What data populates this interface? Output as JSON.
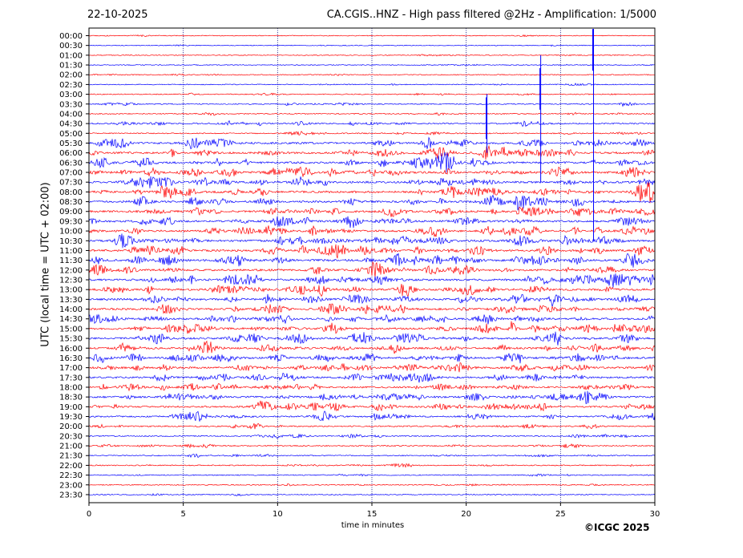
{
  "header": {
    "date": "22-10-2025",
    "title": "CA.CGIS..HNZ - High pass filtered @2Hz - Amplification: 1/5000"
  },
  "footer": {
    "copyright": "©ICGC 2025"
  },
  "colors": {
    "trace_a": "#ff0000",
    "trace_b": "#0000ff",
    "axis": "#000000",
    "grid": "#000080"
  },
  "chart_data": {
    "type": "line",
    "chart_kind": "helicorder seismogram",
    "xlabel": "time in minutes",
    "ylabel": "UTC (local time = UTC + 02:00)",
    "xlim": [
      0,
      30
    ],
    "x_ticks": [
      0,
      5,
      10,
      15,
      20,
      25,
      30
    ],
    "vertical_grid": [
      5,
      10,
      15,
      20,
      25
    ],
    "row_labels": [
      "00:00",
      "00:30",
      "01:00",
      "01:30",
      "02:00",
      "02:30",
      "03:00",
      "03:30",
      "04:00",
      "04:30",
      "05:00",
      "05:30",
      "06:00",
      "06:30",
      "07:00",
      "07:30",
      "08:00",
      "08:30",
      "09:00",
      "09:30",
      "10:00",
      "10:30",
      "11:00",
      "11:30",
      "12:00",
      "12:30",
      "13:00",
      "13:30",
      "14:00",
      "14:30",
      "15:00",
      "15:30",
      "16:00",
      "16:30",
      "17:00",
      "17:30",
      "18:00",
      "18:30",
      "19:00",
      "19:30",
      "20:00",
      "20:30",
      "21:00",
      "21:30",
      "22:00",
      "22:30",
      "23:00",
      "23:30"
    ],
    "row_activity": [
      0.15,
      0.12,
      0.18,
      0.15,
      0.2,
      0.2,
      0.25,
      0.3,
      0.3,
      0.45,
      0.3,
      0.85,
      0.9,
      0.9,
      0.95,
      0.9,
      0.95,
      0.9,
      0.9,
      0.85,
      0.95,
      0.9,
      0.9,
      0.95,
      0.9,
      0.95,
      0.9,
      0.9,
      0.9,
      0.9,
      0.9,
      0.9,
      0.85,
      0.85,
      0.8,
      0.75,
      0.75,
      0.8,
      0.75,
      0.65,
      0.45,
      0.4,
      0.35,
      0.3,
      0.3,
      0.25,
      0.25,
      0.2
    ],
    "large_events": [
      {
        "minute": 21.1,
        "row_start": 7,
        "row_end": 12,
        "peak": 80
      },
      {
        "minute": 23.95,
        "row_start": 4,
        "row_end": 15,
        "peak": 140
      },
      {
        "minute": 26.75,
        "row_start": 0,
        "row_end": 21,
        "peak": 265
      }
    ]
  }
}
